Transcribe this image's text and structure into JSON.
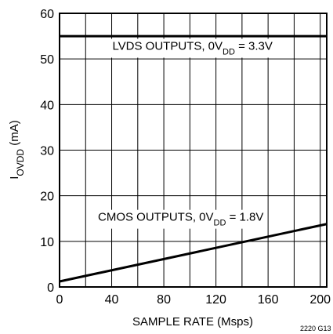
{
  "chart_data": {
    "type": "line",
    "xlabel": "SAMPLE RATE (Msps)",
    "ylabel": {
      "main": "I",
      "sub": "OVDD",
      "unit": " (mA)"
    },
    "xlim": [
      0,
      205
    ],
    "ylim": [
      0,
      60
    ],
    "xticks": [
      0,
      40,
      80,
      120,
      160,
      200
    ],
    "yticks": [
      0,
      10,
      20,
      30,
      40,
      50,
      60
    ],
    "xgrid": [
      20,
      40,
      60,
      80,
      100,
      120,
      140,
      160,
      180,
      200
    ],
    "ygrid": [
      10,
      20,
      30,
      40,
      50
    ],
    "grid": true,
    "series": [
      {
        "name": "LVDS",
        "x": [
          0,
          205
        ],
        "y": [
          55,
          55
        ]
      },
      {
        "name": "CMOS",
        "x": [
          0,
          205
        ],
        "y": [
          1.2,
          13.8
        ]
      }
    ],
    "annotations": [
      {
        "id": "lvds",
        "text_before": "LVDS OUTPUTS, 0V",
        "sub": "DD",
        "text_after": " = 3.3V",
        "x": 102,
        "y": 52
      },
      {
        "id": "cmos",
        "text_before": "CMOS OUTPUTS, 0V",
        "sub": "DD",
        "text_after": " = 1.8V",
        "x": 93,
        "y": 14.5
      }
    ],
    "figure_code": "2220 G13"
  }
}
